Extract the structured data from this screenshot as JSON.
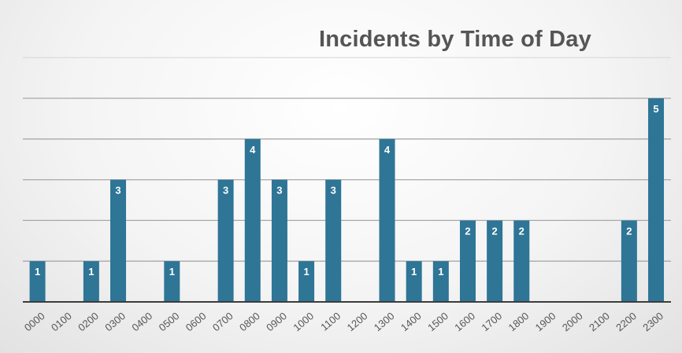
{
  "chart_data": {
    "type": "bar",
    "title": "Incidents by Time of Day",
    "xlabel": "",
    "ylabel": "",
    "categories": [
      "0000",
      "0100",
      "0200",
      "0300",
      "0400",
      "0500",
      "0600",
      "0700",
      "0800",
      "0900",
      "1000",
      "1100",
      "1200",
      "1300",
      "1400",
      "1500",
      "1600",
      "1700",
      "1800",
      "1900",
      "2000",
      "2100",
      "2200",
      "2300"
    ],
    "values": [
      1,
      0,
      1,
      3,
      0,
      1,
      0,
      3,
      4,
      3,
      1,
      3,
      0,
      4,
      1,
      1,
      2,
      2,
      2,
      0,
      0,
      0,
      2,
      5
    ],
    "ylim": [
      0,
      6
    ],
    "grid": true,
    "legend": "none",
    "colors": {
      "bar": "#2e7596",
      "label": "#ffffff",
      "grid": "#a8a8a8"
    }
  }
}
